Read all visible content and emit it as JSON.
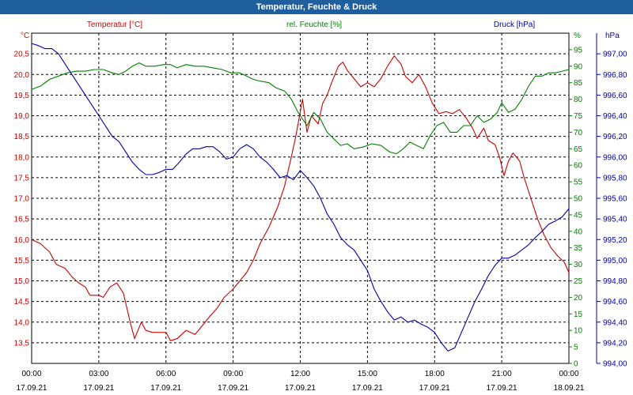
{
  "title": "Temperatur, Feuchte & Druck",
  "chart_data": {
    "type": "line",
    "title": "Temperatur, Feuchte & Druck",
    "x": {
      "tick_labels": [
        [
          "00:00",
          "17.09.21"
        ],
        [
          "03:00",
          "17.09.21"
        ],
        [
          "06:00",
          "17.09.21"
        ],
        [
          "09:00",
          "17.09.21"
        ],
        [
          "12:00",
          "17.09.21"
        ],
        [
          "15:00",
          "17.09.21"
        ],
        [
          "18:00",
          "17.09.21"
        ],
        [
          "21:00",
          "17.09.21"
        ],
        [
          "00:00",
          "18.09.21"
        ]
      ],
      "range_hours": [
        0,
        24
      ]
    },
    "axes": {
      "temperature": {
        "unit_label": "°C",
        "header": "Temperatur [°C]",
        "color": "#cc0000",
        "ylim": [
          13.0,
          21.0
        ],
        "ticks": [
          "13,5",
          "14,0",
          "14,5",
          "15,0",
          "15,5",
          "16,0",
          "16,5",
          "17,0",
          "17,5",
          "18,0",
          "18,5",
          "19,0",
          "19,5",
          "20,0",
          "20,5"
        ]
      },
      "humidity": {
        "unit_label": "%",
        "header": "rel. Feuchte [%]",
        "color": "#008000",
        "ylim": [
          0,
          100
        ],
        "ticks": [
          "0",
          "5",
          "10",
          "15",
          "20",
          "25",
          "30",
          "35",
          "40",
          "45",
          "50",
          "55",
          "60",
          "65",
          "70",
          "75",
          "80",
          "85",
          "90",
          "95"
        ]
      },
      "pressure": {
        "unit_label": "hPa",
        "header": "Druck [hPa]",
        "color": "#0000aa",
        "ylim": [
          994.0,
          997.2
        ],
        "ticks": [
          "994,00",
          "994,20",
          "994,40",
          "994,60",
          "994,80",
          "995,00",
          "995,20",
          "995,40",
          "995,60",
          "995,80",
          "996,00",
          "996,20",
          "996,40",
          "996,60",
          "996,80",
          "997,00"
        ]
      }
    },
    "series": [
      {
        "name": "Temperatur",
        "axis": "temperature",
        "color": "#cc0000",
        "points": [
          [
            0,
            16.0
          ],
          [
            0.4,
            15.9
          ],
          [
            0.8,
            15.7
          ],
          [
            1.1,
            15.4
          ],
          [
            1.5,
            15.3
          ],
          [
            1.8,
            15.1
          ],
          [
            2.1,
            14.95
          ],
          [
            2.4,
            14.85
          ],
          [
            2.6,
            14.65
          ],
          [
            3.0,
            14.65
          ],
          [
            3.2,
            14.6
          ],
          [
            3.5,
            14.85
          ],
          [
            3.8,
            14.95
          ],
          [
            4.1,
            14.7
          ],
          [
            4.4,
            14.0
          ],
          [
            4.6,
            13.6
          ],
          [
            4.9,
            14.0
          ],
          [
            5.1,
            13.8
          ],
          [
            5.4,
            13.75
          ],
          [
            5.7,
            13.75
          ],
          [
            6.0,
            13.75
          ],
          [
            6.2,
            13.55
          ],
          [
            6.5,
            13.6
          ],
          [
            6.9,
            13.8
          ],
          [
            7.1,
            13.75
          ],
          [
            7.3,
            13.7
          ],
          [
            7.6,
            13.9
          ],
          [
            7.9,
            14.1
          ],
          [
            8.3,
            14.35
          ],
          [
            8.6,
            14.6
          ],
          [
            9.0,
            14.8
          ],
          [
            9.3,
            15.0
          ],
          [
            9.6,
            15.2
          ],
          [
            9.9,
            15.5
          ],
          [
            10.2,
            15.9
          ],
          [
            10.6,
            16.3
          ],
          [
            11.0,
            16.8
          ],
          [
            11.3,
            17.3
          ],
          [
            11.6,
            18.0
          ],
          [
            11.8,
            18.5
          ],
          [
            12.0,
            19.1
          ],
          [
            12.1,
            19.4
          ],
          [
            12.3,
            18.6
          ],
          [
            12.5,
            19.0
          ],
          [
            12.8,
            18.8
          ],
          [
            13.0,
            19.3
          ],
          [
            13.2,
            19.5
          ],
          [
            13.4,
            19.8
          ],
          [
            13.7,
            20.2
          ],
          [
            13.9,
            20.3
          ],
          [
            14.1,
            20.1
          ],
          [
            14.4,
            19.9
          ],
          [
            14.7,
            19.7
          ],
          [
            15.0,
            19.8
          ],
          [
            15.3,
            19.7
          ],
          [
            15.6,
            19.9
          ],
          [
            15.9,
            20.2
          ],
          [
            16.2,
            20.45
          ],
          [
            16.5,
            20.25
          ],
          [
            16.7,
            19.95
          ],
          [
            17.0,
            19.8
          ],
          [
            17.3,
            20.0
          ],
          [
            17.6,
            19.7
          ],
          [
            17.9,
            19.3
          ],
          [
            18.2,
            19.05
          ],
          [
            18.5,
            19.1
          ],
          [
            18.8,
            19.05
          ],
          [
            19.1,
            19.15
          ],
          [
            19.4,
            18.95
          ],
          [
            19.7,
            18.7
          ],
          [
            19.9,
            18.45
          ],
          [
            20.2,
            18.7
          ],
          [
            20.4,
            18.4
          ],
          [
            20.7,
            18.3
          ],
          [
            20.9,
            18.0
          ],
          [
            21.1,
            17.55
          ],
          [
            21.3,
            17.9
          ],
          [
            21.5,
            18.1
          ],
          [
            21.8,
            17.9
          ],
          [
            22.0,
            17.5
          ],
          [
            22.3,
            17.0
          ],
          [
            22.6,
            16.5
          ],
          [
            22.9,
            16.1
          ],
          [
            23.2,
            15.8
          ],
          [
            23.5,
            15.6
          ],
          [
            23.8,
            15.45
          ],
          [
            24.0,
            15.2
          ]
        ]
      },
      {
        "name": "rel. Feuchte",
        "axis": "humidity",
        "color": "#008000",
        "points": [
          [
            0,
            83
          ],
          [
            0.4,
            84
          ],
          [
            0.8,
            86
          ],
          [
            1.2,
            87
          ],
          [
            1.6,
            88
          ],
          [
            2.0,
            88.5
          ],
          [
            2.4,
            88.5
          ],
          [
            2.8,
            89
          ],
          [
            3.2,
            89
          ],
          [
            3.6,
            88
          ],
          [
            3.9,
            87.5
          ],
          [
            4.2,
            88.5
          ],
          [
            4.5,
            90
          ],
          [
            4.8,
            91
          ],
          [
            5.1,
            90
          ],
          [
            5.5,
            90
          ],
          [
            5.9,
            90.5
          ],
          [
            6.2,
            90.5
          ],
          [
            6.5,
            89.5
          ],
          [
            6.9,
            90.5
          ],
          [
            7.3,
            90
          ],
          [
            7.7,
            90
          ],
          [
            8.1,
            89.5
          ],
          [
            8.5,
            89
          ],
          [
            8.9,
            88
          ],
          [
            9.3,
            88
          ],
          [
            9.6,
            87
          ],
          [
            9.9,
            86
          ],
          [
            10.2,
            85.5
          ],
          [
            10.6,
            85
          ],
          [
            10.9,
            83.5
          ],
          [
            11.3,
            82.5
          ],
          [
            11.6,
            80
          ],
          [
            11.9,
            76
          ],
          [
            12.1,
            74
          ],
          [
            12.3,
            72
          ],
          [
            12.6,
            76
          ],
          [
            12.9,
            74
          ],
          [
            13.2,
            70
          ],
          [
            13.5,
            68
          ],
          [
            13.8,
            66
          ],
          [
            14.1,
            66.5
          ],
          [
            14.4,
            65
          ],
          [
            14.8,
            65.5
          ],
          [
            15.2,
            66.5
          ],
          [
            15.6,
            66
          ],
          [
            16.0,
            64
          ],
          [
            16.3,
            63.5
          ],
          [
            16.6,
            65
          ],
          [
            16.9,
            67
          ],
          [
            17.2,
            66
          ],
          [
            17.5,
            65
          ],
          [
            17.8,
            69
          ],
          [
            18.1,
            72
          ],
          [
            18.4,
            73
          ],
          [
            18.7,
            70
          ],
          [
            19.0,
            70
          ],
          [
            19.3,
            72
          ],
          [
            19.6,
            72
          ],
          [
            19.9,
            75
          ],
          [
            20.2,
            73
          ],
          [
            20.5,
            74
          ],
          [
            20.8,
            76
          ],
          [
            21.0,
            79
          ],
          [
            21.3,
            76
          ],
          [
            21.6,
            77
          ],
          [
            21.9,
            80
          ],
          [
            22.2,
            84
          ],
          [
            22.5,
            87
          ],
          [
            22.8,
            87
          ],
          [
            23.1,
            88
          ],
          [
            23.4,
            88
          ],
          [
            23.7,
            88.5
          ],
          [
            24.0,
            89
          ]
        ]
      },
      {
        "name": "Druck",
        "axis": "pressure",
        "color": "#0000aa",
        "points": [
          [
            0,
            997.1
          ],
          [
            0.3,
            997.08
          ],
          [
            0.6,
            997.05
          ],
          [
            0.9,
            997.05
          ],
          [
            1.2,
            997.0
          ],
          [
            1.5,
            996.9
          ],
          [
            1.8,
            996.8
          ],
          [
            2.1,
            996.7
          ],
          [
            2.4,
            996.6
          ],
          [
            2.7,
            996.5
          ],
          [
            3.0,
            996.4
          ],
          [
            3.3,
            996.3
          ],
          [
            3.6,
            996.2
          ],
          [
            3.9,
            996.15
          ],
          [
            4.2,
            996.05
          ],
          [
            4.5,
            995.95
          ],
          [
            4.8,
            995.88
          ],
          [
            5.1,
            995.83
          ],
          [
            5.4,
            995.83
          ],
          [
            5.7,
            995.85
          ],
          [
            6.0,
            995.88
          ],
          [
            6.3,
            995.88
          ],
          [
            6.6,
            995.95
          ],
          [
            6.9,
            996.03
          ],
          [
            7.2,
            996.08
          ],
          [
            7.5,
            996.08
          ],
          [
            7.8,
            996.1
          ],
          [
            8.1,
            996.1
          ],
          [
            8.4,
            996.05
          ],
          [
            8.7,
            995.98
          ],
          [
            9.0,
            996.0
          ],
          [
            9.3,
            996.08
          ],
          [
            9.6,
            996.12
          ],
          [
            9.9,
            996.08
          ],
          [
            10.2,
            996.0
          ],
          [
            10.5,
            995.95
          ],
          [
            10.8,
            995.88
          ],
          [
            11.1,
            995.8
          ],
          [
            11.4,
            995.82
          ],
          [
            11.7,
            995.78
          ],
          [
            12.0,
            995.87
          ],
          [
            12.3,
            995.8
          ],
          [
            12.6,
            995.72
          ],
          [
            12.9,
            995.6
          ],
          [
            13.2,
            995.45
          ],
          [
            13.5,
            995.35
          ],
          [
            13.8,
            995.22
          ],
          [
            14.1,
            995.15
          ],
          [
            14.4,
            995.1
          ],
          [
            14.7,
            995.0
          ],
          [
            15.0,
            994.9
          ],
          [
            15.3,
            994.72
          ],
          [
            15.6,
            994.6
          ],
          [
            15.9,
            994.5
          ],
          [
            16.2,
            994.42
          ],
          [
            16.5,
            994.45
          ],
          [
            16.8,
            994.4
          ],
          [
            17.1,
            994.42
          ],
          [
            17.4,
            994.38
          ],
          [
            17.7,
            994.35
          ],
          [
            18.0,
            994.3
          ],
          [
            18.3,
            994.2
          ],
          [
            18.6,
            994.12
          ],
          [
            18.9,
            994.15
          ],
          [
            19.2,
            994.3
          ],
          [
            19.5,
            994.45
          ],
          [
            19.8,
            994.6
          ],
          [
            20.1,
            994.72
          ],
          [
            20.4,
            994.85
          ],
          [
            20.7,
            994.95
          ],
          [
            21.0,
            995.02
          ],
          [
            21.3,
            995.02
          ],
          [
            21.6,
            995.05
          ],
          [
            21.9,
            995.1
          ],
          [
            22.2,
            995.15
          ],
          [
            22.5,
            995.22
          ],
          [
            22.8,
            995.28
          ],
          [
            23.1,
            995.35
          ],
          [
            23.4,
            995.38
          ],
          [
            23.7,
            995.42
          ],
          [
            24.0,
            995.5
          ]
        ]
      }
    ],
    "grid": true
  }
}
